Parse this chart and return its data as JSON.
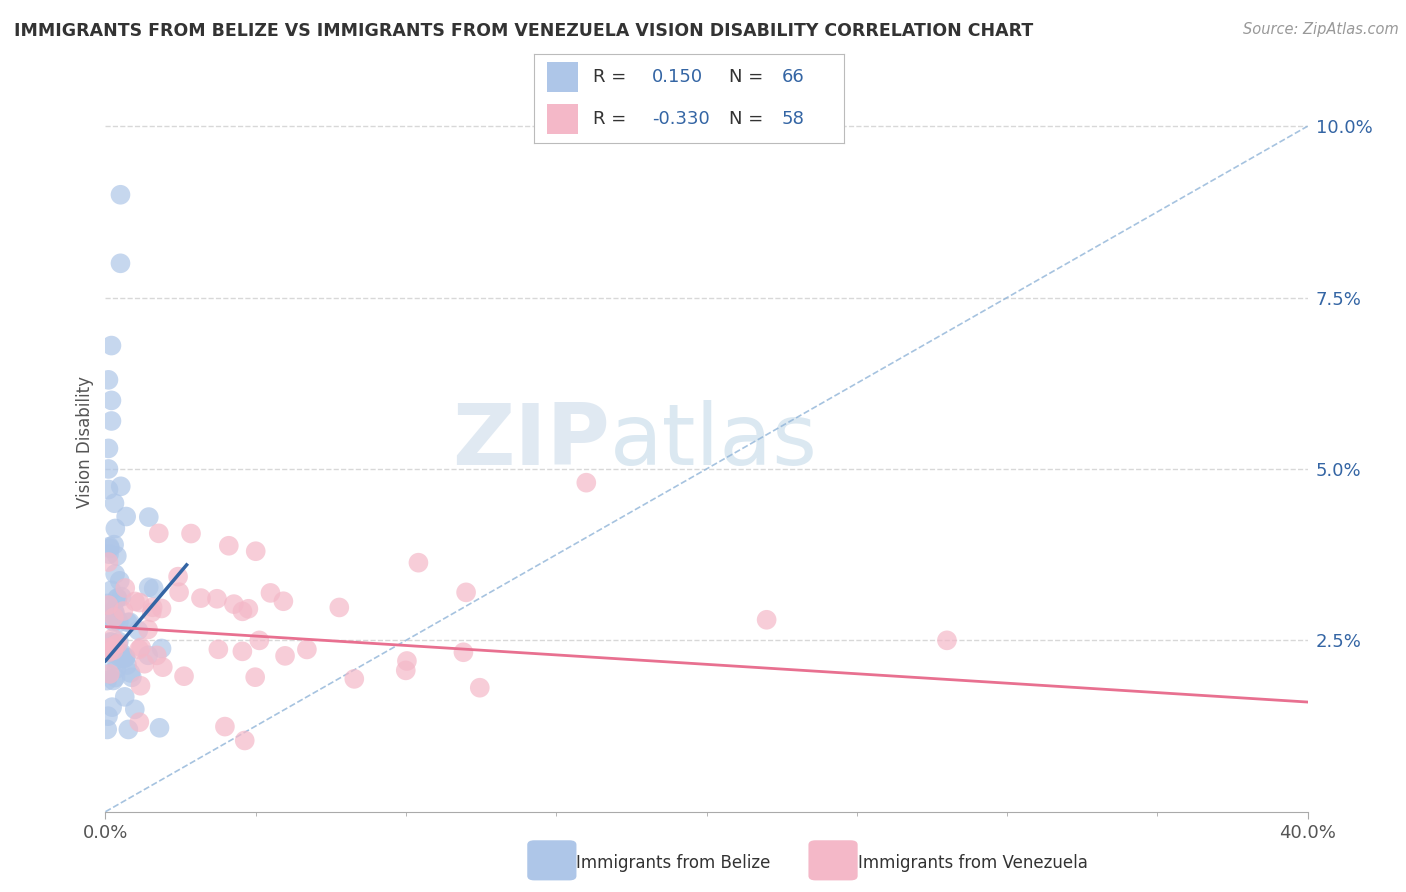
{
  "title": "IMMIGRANTS FROM BELIZE VS IMMIGRANTS FROM VENEZUELA VISION DISABILITY CORRELATION CHART",
  "source": "Source: ZipAtlas.com",
  "ylabel": "Vision Disability",
  "y_tick_vals": [
    0.025,
    0.05,
    0.075,
    0.1
  ],
  "x_range": [
    0.0,
    0.4
  ],
  "y_range": [
    0.0,
    0.108
  ],
  "belize_R": 0.15,
  "belize_N": 66,
  "venezuela_R": -0.33,
  "venezuela_N": 58,
  "belize_color": "#aec6e8",
  "venezuela_color": "#f4b8c8",
  "belize_line_color": "#3465a4",
  "venezuela_line_color": "#e87090",
  "dash_line_color": "#90b4d8",
  "legend_text_color": "#3465a4",
  "title_color": "#333333",
  "watermark_zip": "ZIP",
  "watermark_atlas": "atlas",
  "background_color": "#ffffff",
  "grid_color": "#d8d8d8",
  "belize_line_x0": 0.0,
  "belize_line_y0": 0.022,
  "belize_line_x1": 0.027,
  "belize_line_y1": 0.036,
  "venezuela_line_x0": 0.0,
  "venezuela_line_y0": 0.027,
  "venezuela_line_x1": 0.4,
  "venezuela_line_y1": 0.016
}
